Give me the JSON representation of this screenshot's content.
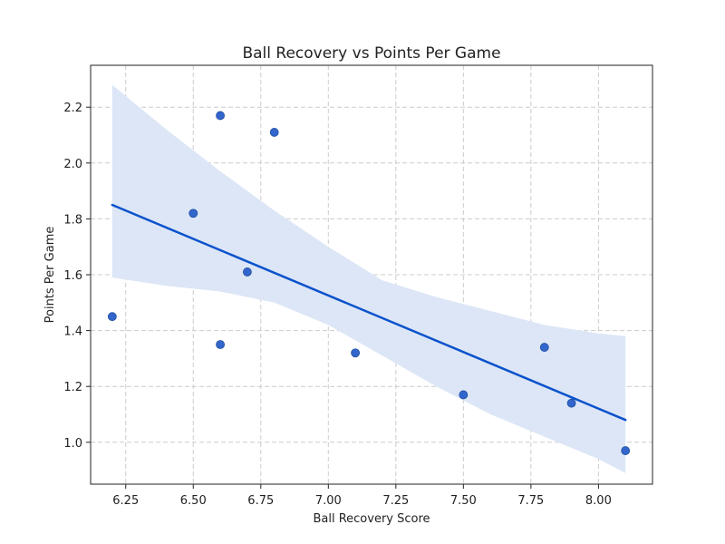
{
  "chart_data": {
    "type": "scatter",
    "title": "Ball Recovery vs Points Per Game",
    "xlabel": "Ball Recovery Score",
    "ylabel": "Points Per Game",
    "xlim": [
      6.12,
      8.2
    ],
    "ylim": [
      0.85,
      2.35
    ],
    "x_ticks": [
      6.25,
      6.5,
      6.75,
      7.0,
      7.25,
      7.5,
      7.75,
      8.0
    ],
    "x_tick_labels": [
      "6.25",
      "6.50",
      "6.75",
      "7.00",
      "7.25",
      "7.50",
      "7.75",
      "8.00"
    ],
    "y_ticks": [
      1.0,
      1.2,
      1.4,
      1.6,
      1.8,
      2.0,
      2.2
    ],
    "y_tick_labels": [
      "1.0",
      "1.2",
      "1.4",
      "1.6",
      "1.8",
      "2.0",
      "2.2"
    ],
    "grid": true,
    "points": [
      {
        "x": 6.2,
        "y": 1.45
      },
      {
        "x": 6.5,
        "y": 1.82
      },
      {
        "x": 6.6,
        "y": 2.17
      },
      {
        "x": 6.6,
        "y": 1.35
      },
      {
        "x": 6.7,
        "y": 1.61
      },
      {
        "x": 6.8,
        "y": 2.11
      },
      {
        "x": 7.1,
        "y": 1.32
      },
      {
        "x": 7.5,
        "y": 1.17
      },
      {
        "x": 7.8,
        "y": 1.34
      },
      {
        "x": 7.9,
        "y": 1.14
      },
      {
        "x": 8.1,
        "y": 0.97
      }
    ],
    "regression": {
      "x": [
        6.2,
        8.1
      ],
      "y": [
        1.85,
        1.08
      ]
    },
    "confidence_band": {
      "x": [
        6.2,
        6.4,
        6.6,
        6.8,
        7.0,
        7.2,
        7.4,
        7.6,
        7.8,
        8.0,
        8.1
      ],
      "upper": [
        2.28,
        2.12,
        1.97,
        1.83,
        1.7,
        1.58,
        1.52,
        1.47,
        1.42,
        1.39,
        1.38
      ],
      "lower": [
        1.59,
        1.56,
        1.54,
        1.5,
        1.42,
        1.31,
        1.2,
        1.1,
        1.02,
        0.94,
        0.89
      ]
    },
    "colors": {
      "points": "#3366cc",
      "point_edge": "#1f4e9e",
      "line": "#0b52cc",
      "band": "#dce6f6",
      "grid": "#cccccc",
      "axis": "#222222"
    }
  }
}
